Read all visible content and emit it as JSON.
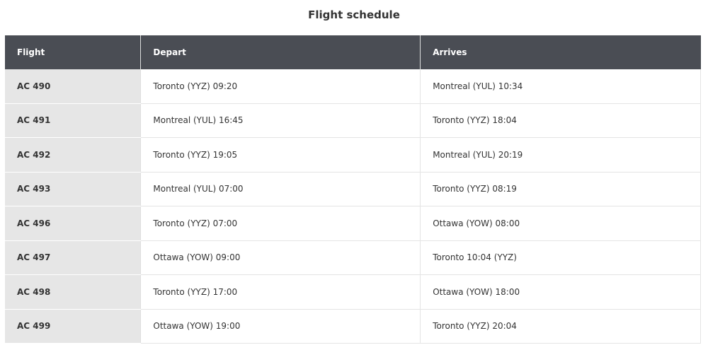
{
  "title": "Flight schedule",
  "colors": {
    "header_bg": "#4a4d54",
    "flight_col_bg": "#e6e6e6"
  },
  "columns": [
    "Flight",
    "Depart",
    "Arrives"
  ],
  "rows": [
    {
      "flight": "AC 490",
      "depart": "Toronto (YYZ) 09:20",
      "arrives": "Montreal (YUL) 10:34"
    },
    {
      "flight": "AC 491",
      "depart": "Montreal (YUL) 16:45",
      "arrives": "Toronto (YYZ) 18:04"
    },
    {
      "flight": "AC 492",
      "depart": "Toronto (YYZ) 19:05",
      "arrives": "Montreal (YUL) 20:19"
    },
    {
      "flight": "AC 493",
      "depart": "Montreal (YUL) 07:00",
      "arrives": "Toronto (YYZ) 08:19"
    },
    {
      "flight": "AC 496",
      "depart": "Toronto (YYZ) 07:00",
      "arrives": "Ottawa (YOW) 08:00"
    },
    {
      "flight": "AC 497",
      "depart": "Ottawa (YOW) 09:00",
      "arrives": "Toronto 10:04 (YYZ)"
    },
    {
      "flight": "AC 498",
      "depart": "Toronto (YYZ) 17:00",
      "arrives": "Ottawa (YOW) 18:00"
    },
    {
      "flight": "AC 499",
      "depart": "Ottawa (YOW) 19:00",
      "arrives": "Toronto (YYZ) 20:04"
    }
  ]
}
